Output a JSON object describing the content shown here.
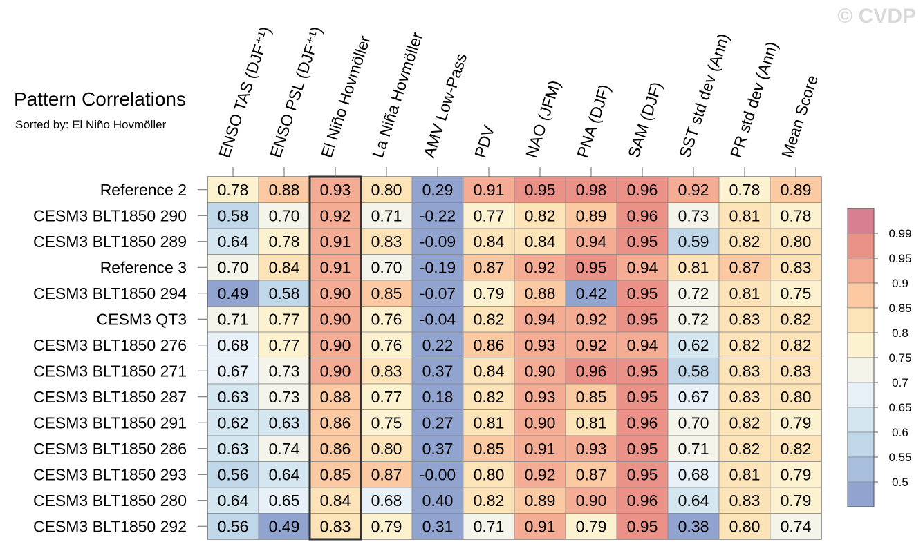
{
  "watermark": "© CVDP",
  "chart_data": {
    "type": "heatmap",
    "title": "Pattern Correlations",
    "subtitle": "Sorted by: El Niño Hovmöller",
    "highlight_column": "El Niño Hovmöller",
    "columns": [
      "ENSO TAS (DJF⁺¹)",
      "ENSO PSL (DJF⁺¹)",
      "El Niño Hovmöller",
      "La Niña Hovmöller",
      "AMV Low-Pass",
      "PDV",
      "NAO (JFM)",
      "PNA (DJF)",
      "SAM (DJF)",
      "SST std dev (Ann)",
      "PR std dev (Ann)",
      "Mean Score"
    ],
    "rows": [
      {
        "name": "Reference 2",
        "values": [
          "0.78",
          "0.88",
          "0.93",
          "0.80",
          "0.29",
          "0.91",
          "0.95",
          "0.98",
          "0.96",
          "0.92",
          "0.78",
          "0.89"
        ]
      },
      {
        "name": "CESM3 BLT1850 290",
        "values": [
          "0.58",
          "0.70",
          "0.92",
          "0.71",
          "-0.22",
          "0.77",
          "0.82",
          "0.89",
          "0.96",
          "0.73",
          "0.81",
          "0.78"
        ]
      },
      {
        "name": "CESM3 BLT1850 289",
        "values": [
          "0.64",
          "0.78",
          "0.91",
          "0.83",
          "-0.09",
          "0.84",
          "0.84",
          "0.94",
          "0.95",
          "0.59",
          "0.82",
          "0.80"
        ]
      },
      {
        "name": "Reference 3",
        "values": [
          "0.70",
          "0.84",
          "0.91",
          "0.70",
          "-0.19",
          "0.87",
          "0.92",
          "0.95",
          "0.94",
          "0.81",
          "0.87",
          "0.83"
        ]
      },
      {
        "name": "CESM3 BLT1850 294",
        "values": [
          "0.49",
          "0.58",
          "0.90",
          "0.85",
          "-0.07",
          "0.79",
          "0.88",
          "0.42",
          "0.95",
          "0.72",
          "0.81",
          "0.75"
        ]
      },
      {
        "name": "CESM3 QT3",
        "values": [
          "0.71",
          "0.77",
          "0.90",
          "0.76",
          "-0.04",
          "0.82",
          "0.94",
          "0.92",
          "0.95",
          "0.72",
          "0.83",
          "0.82"
        ]
      },
      {
        "name": "CESM3 BLT1850 276",
        "values": [
          "0.68",
          "0.77",
          "0.90",
          "0.76",
          "0.22",
          "0.86",
          "0.93",
          "0.92",
          "0.94",
          "0.62",
          "0.82",
          "0.82"
        ]
      },
      {
        "name": "CESM3 BLT1850 271",
        "values": [
          "0.67",
          "0.73",
          "0.90",
          "0.83",
          "0.37",
          "0.84",
          "0.90",
          "0.96",
          "0.95",
          "0.58",
          "0.83",
          "0.83"
        ]
      },
      {
        "name": "CESM3 BLT1850 287",
        "values": [
          "0.63",
          "0.73",
          "0.88",
          "0.77",
          "0.18",
          "0.82",
          "0.93",
          "0.85",
          "0.95",
          "0.67",
          "0.83",
          "0.80"
        ]
      },
      {
        "name": "CESM3 BLT1850 291",
        "values": [
          "0.62",
          "0.63",
          "0.86",
          "0.75",
          "0.27",
          "0.81",
          "0.90",
          "0.81",
          "0.96",
          "0.70",
          "0.82",
          "0.79"
        ]
      },
      {
        "name": "CESM3 BLT1850 286",
        "values": [
          "0.63",
          "0.74",
          "0.86",
          "0.80",
          "0.37",
          "0.85",
          "0.91",
          "0.93",
          "0.95",
          "0.71",
          "0.82",
          "0.82"
        ]
      },
      {
        "name": "CESM3 BLT1850 293",
        "values": [
          "0.56",
          "0.64",
          "0.85",
          "0.87",
          "-0.00",
          "0.80",
          "0.92",
          "0.87",
          "0.95",
          "0.68",
          "0.81",
          "0.79"
        ]
      },
      {
        "name": "CESM3 BLT1850 280",
        "values": [
          "0.64",
          "0.65",
          "0.84",
          "0.68",
          "0.40",
          "0.82",
          "0.89",
          "0.90",
          "0.96",
          "0.64",
          "0.83",
          "0.79"
        ]
      },
      {
        "name": "CESM3 BLT1850 292",
        "values": [
          "0.56",
          "0.49",
          "0.83",
          "0.79",
          "0.31",
          "0.71",
          "0.91",
          "0.79",
          "0.95",
          "0.38",
          "0.80",
          "0.74"
        ]
      }
    ],
    "colorbar": {
      "labels": [
        "0.99",
        "0.95",
        "0.9",
        "0.85",
        "0.8",
        "0.75",
        "0.7",
        "0.65",
        "0.6",
        "0.55",
        "0.5"
      ],
      "thresholds": [
        0.5,
        0.55,
        0.6,
        0.65,
        0.7,
        0.75,
        0.8,
        0.85,
        0.9,
        0.95,
        0.99
      ],
      "colors": [
        "#91a3cf",
        "#a8bfdd",
        "#bfd7e8",
        "#d4e7f1",
        "#e7f1f7",
        "#f4f4ea",
        "#fdf2d0",
        "#fde3b8",
        "#fbc9a2",
        "#f4ad94",
        "#ea9288",
        "#d77f90"
      ]
    }
  }
}
